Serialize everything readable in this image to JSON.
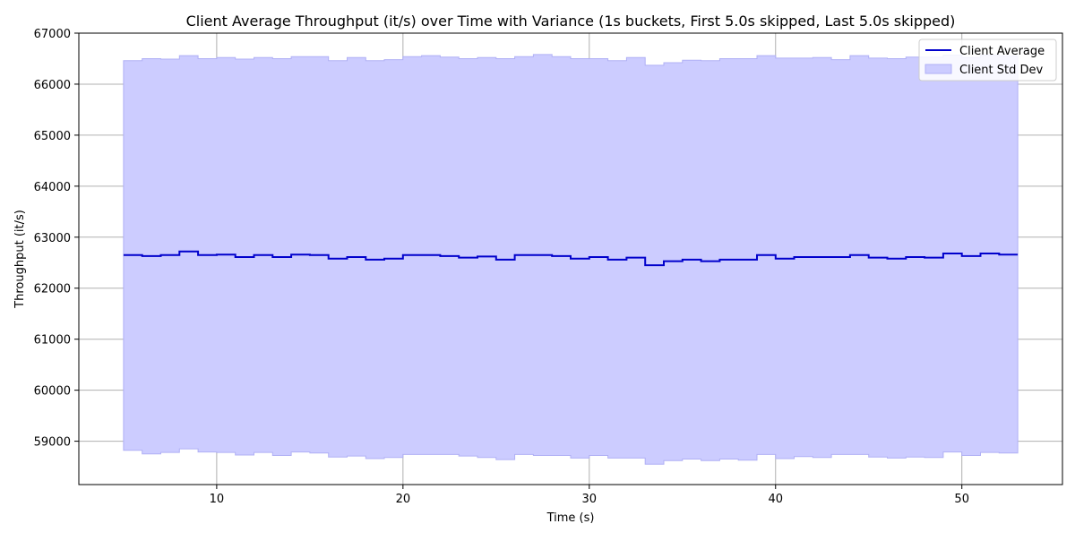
{
  "chart_data": {
    "type": "line",
    "title": "Client Average Throughput (it/s) over Time with Variance (1s buckets, First 5.0s skipped, Last 5.0s skipped)",
    "xlabel": "Time (s)",
    "ylabel": "Throughput (it/s)",
    "xlim": [
      2.6,
      55.4
    ],
    "ylim": [
      58150,
      67000
    ],
    "xticks": [
      10,
      20,
      30,
      40,
      50
    ],
    "yticks": [
      59000,
      60000,
      61000,
      62000,
      63000,
      64000,
      65000,
      66000,
      67000
    ],
    "grid": true,
    "legend_position": "top-right",
    "step": "post",
    "x_end": 53,
    "colors": {
      "line": "#0000cc",
      "band_fill": "#ccccff",
      "band_edge": "#b0b0f5",
      "grid": "#b0b0b0"
    },
    "x": [
      5,
      6,
      7,
      8,
      9,
      10,
      11,
      12,
      13,
      14,
      15,
      16,
      17,
      18,
      19,
      20,
      21,
      22,
      23,
      24,
      25,
      26,
      27,
      28,
      29,
      30,
      31,
      32,
      33,
      34,
      35,
      36,
      37,
      38,
      39,
      40,
      41,
      42,
      43,
      44,
      45,
      46,
      47,
      48,
      49,
      50,
      51,
      52
    ],
    "mean": [
      62650,
      62630,
      62650,
      62720,
      62650,
      62660,
      62610,
      62650,
      62610,
      62660,
      62650,
      62580,
      62610,
      62560,
      62580,
      62650,
      62650,
      62630,
      62600,
      62620,
      62560,
      62650,
      62650,
      62630,
      62580,
      62610,
      62560,
      62600,
      62450,
      62530,
      62560,
      62530,
      62560,
      62560,
      62650,
      62580,
      62610,
      62610,
      62610,
      62650,
      62600,
      62580,
      62610,
      62600,
      62680,
      62630,
      62680,
      62660
    ],
    "upper": [
      66460,
      66500,
      66490,
      66560,
      66500,
      66520,
      66490,
      66520,
      66500,
      66540,
      66540,
      66460,
      66520,
      66460,
      66480,
      66540,
      66560,
      66530,
      66500,
      66520,
      66500,
      66540,
      66580,
      66540,
      66500,
      66500,
      66460,
      66520,
      66370,
      66420,
      66470,
      66460,
      66500,
      66500,
      66560,
      66510,
      66510,
      66520,
      66480,
      66560,
      66510,
      66500,
      66530,
      66530,
      66570,
      66520,
      66570,
      66550
    ],
    "lower": [
      58820,
      58750,
      58780,
      58850,
      58790,
      58780,
      58730,
      58780,
      58720,
      58790,
      58770,
      58690,
      58710,
      58660,
      58680,
      58740,
      58740,
      58740,
      58710,
      58680,
      58640,
      58740,
      58720,
      58720,
      58670,
      58720,
      58670,
      58670,
      58550,
      58620,
      58650,
      58620,
      58650,
      58630,
      58740,
      58660,
      58700,
      58680,
      58740,
      58740,
      58690,
      58670,
      58690,
      58680,
      58790,
      58720,
      58780,
      58770
    ],
    "legend": [
      {
        "label": "Client Average",
        "kind": "line"
      },
      {
        "label": "Client Std Dev",
        "kind": "band"
      }
    ]
  }
}
